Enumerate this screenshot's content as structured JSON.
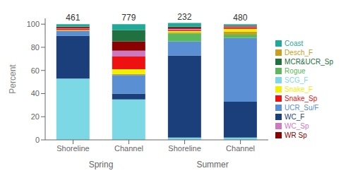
{
  "chart_data": {
    "type": "bar",
    "stacked": true,
    "categories": [
      "Shoreline",
      "Channel",
      "Shoreline",
      "Channel"
    ],
    "groups": [
      "Spring",
      "Spring",
      "Summer",
      "Summer"
    ],
    "counts": [
      461,
      779,
      232,
      480
    ],
    "series": [
      {
        "name": "SCG_F",
        "color": "#7dd8e6",
        "values": [
          53.0,
          35.0,
          2.0,
          2.0
        ]
      },
      {
        "name": "WC_F",
        "color": "#1b3f7a",
        "values": [
          37.0,
          5.0,
          71.0,
          31.0
        ]
      },
      {
        "name": "UCR_Su/F",
        "color": "#5b8fd4",
        "values": [
          4.0,
          16.0,
          12.0,
          55.0
        ]
      },
      {
        "name": "Rogue",
        "color": "#5cb85c",
        "values": [
          0.0,
          0.0,
          7.0,
          3.0
        ]
      },
      {
        "name": "Desch_F",
        "color": "#c8a020",
        "values": [
          0.5,
          1.0,
          1.0,
          2.5
        ]
      },
      {
        "name": "Snake_F",
        "color": "#f0f000",
        "values": [
          0.5,
          4.0,
          1.0,
          2.5
        ]
      },
      {
        "name": "Snake_Sp",
        "color": "#ee1111",
        "values": [
          1.0,
          11.0,
          1.0,
          1.0
        ]
      },
      {
        "name": "WC_Sp",
        "color": "#cc79c0",
        "values": [
          0.5,
          5.0,
          1.0,
          1.0
        ]
      },
      {
        "name": "WR Sp",
        "color": "#8b0000",
        "values": [
          1.0,
          8.0,
          1.0,
          0.5
        ]
      },
      {
        "name": "MCR&UCR_Sp",
        "color": "#207040",
        "values": [
          0.5,
          10.0,
          1.0,
          0.5
        ]
      },
      {
        "name": "Coast",
        "color": "#20a898",
        "values": [
          2.0,
          5.0,
          3.0,
          1.0
        ]
      }
    ],
    "ylabel": "Percent",
    "ylim": [
      0,
      105
    ],
    "yticks": [
      0,
      20,
      40,
      60,
      80,
      100
    ],
    "grid": false,
    "legend": "right"
  }
}
